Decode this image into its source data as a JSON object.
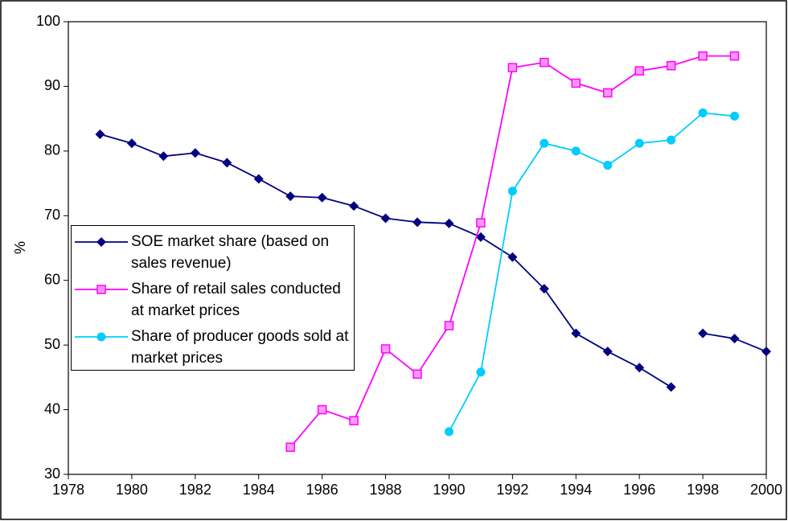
{
  "chart_data": {
    "type": "line",
    "y_label": "%",
    "xlim": [
      1978,
      2000
    ],
    "xticks": [
      1978,
      1980,
      1982,
      1984,
      1986,
      1988,
      1990,
      1992,
      1994,
      1996,
      1998,
      2000
    ],
    "ylim": [
      30,
      100
    ],
    "yticks": [
      30,
      40,
      50,
      60,
      70,
      80,
      90,
      100
    ],
    "legend": "left",
    "series": [
      {
        "name": "SOE market share (based on sales revenue)",
        "color": "#000080",
        "marker": "diamond",
        "x": [
          1979,
          1980,
          1981,
          1982,
          1983,
          1984,
          1985,
          1986,
          1987,
          1988,
          1989,
          1990,
          1991,
          1992,
          1993,
          1994,
          1995,
          1996,
          1997,
          null,
          1998,
          1999,
          2000
        ],
        "values": [
          82.6,
          81.2,
          79.2,
          79.7,
          78.2,
          75.7,
          73.0,
          72.8,
          71.5,
          69.6,
          69.0,
          68.8,
          66.7,
          63.6,
          58.7,
          51.8,
          49.0,
          46.5,
          43.5,
          null,
          51.8,
          51.0,
          49.0
        ]
      },
      {
        "name": "Share of retail sales conducted at market prices",
        "color": "#ff00ff",
        "marker": "square",
        "x": [
          1985,
          1986,
          1987,
          1988,
          1989,
          1990,
          1991,
          1992,
          1993,
          1994,
          1995,
          1996,
          1997,
          1998,
          1999
        ],
        "values": [
          34.2,
          40.0,
          38.3,
          49.4,
          45.5,
          53.0,
          68.9,
          92.9,
          93.7,
          90.5,
          89.0,
          92.4,
          93.2,
          94.7,
          94.7
        ]
      },
      {
        "name": "Share of producer goods sold at market prices",
        "color": "#00ccff",
        "marker": "circle",
        "x": [
          1990,
          1991,
          1992,
          1993,
          1994,
          1995,
          1996,
          1997,
          1998,
          1999
        ],
        "values": [
          36.6,
          45.8,
          73.8,
          81.2,
          80.0,
          77.8,
          81.2,
          81.7,
          85.9,
          85.4
        ]
      }
    ]
  }
}
